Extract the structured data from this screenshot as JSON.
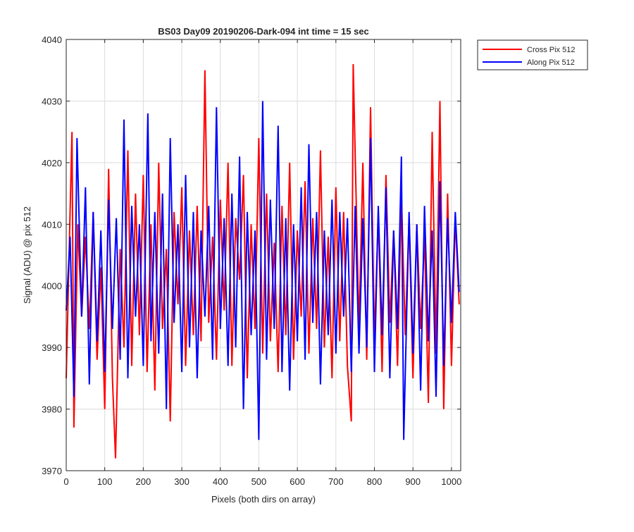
{
  "chart_data": {
    "type": "line",
    "title": "BS03 Day09 20190206-Dark-094 int time = 15 sec",
    "xlabel": "Pixels (both dirs on array)",
    "ylabel": "Signal (ADU) @ pix 512",
    "xlim": [
      0,
      1024
    ],
    "ylim": [
      3970,
      4040
    ],
    "xticks": [
      0,
      100,
      200,
      300,
      400,
      500,
      600,
      700,
      800,
      900,
      1000
    ],
    "yticks": [
      3970,
      3980,
      3990,
      4000,
      4010,
      4020,
      4030,
      4040
    ],
    "grid": true,
    "legend_position": "outside-top-right",
    "series": [
      {
        "name": "Cross Pix 512",
        "color": "#ff0000",
        "x": [
          0,
          10,
          15,
          20,
          30,
          40,
          50,
          60,
          70,
          80,
          90,
          100,
          110,
          120,
          128,
          140,
          150,
          160,
          170,
          180,
          190,
          200,
          210,
          220,
          230,
          240,
          250,
          260,
          270,
          280,
          290,
          300,
          310,
          320,
          330,
          340,
          350,
          360,
          370,
          380,
          390,
          400,
          410,
          420,
          430,
          440,
          450,
          460,
          470,
          480,
          490,
          500,
          510,
          520,
          530,
          540,
          550,
          560,
          570,
          580,
          590,
          600,
          610,
          620,
          630,
          640,
          650,
          660,
          670,
          680,
          690,
          700,
          710,
          720,
          730,
          740,
          745,
          760,
          770,
          780,
          790,
          800,
          810,
          820,
          830,
          840,
          850,
          860,
          870,
          880,
          890,
          900,
          910,
          920,
          930,
          940,
          950,
          960,
          970,
          980,
          990,
          1000,
          1010,
          1020
        ],
        "y": [
          3985,
          4012,
          4025,
          3977,
          4010,
          3995,
          4008,
          3993,
          4012,
          3988,
          4003,
          3980,
          4019,
          3985,
          3972,
          4006,
          3990,
          4022,
          3987,
          4015,
          3992,
          4018,
          3986,
          4010,
          3983,
          4020,
          3993,
          4006,
          3978,
          4012,
          3997,
          4016,
          3987,
          4009,
          3992,
          4013,
          3991,
          4035,
          3994,
          4008,
          3988,
          4014,
          3996,
          4020,
          3987,
          4011,
          4001,
          4018,
          3985,
          4010,
          3993,
          4024,
          3989,
          4015,
          3991,
          4007,
          3986,
          4013,
          3992,
          4020,
          3988,
          4009,
          3995,
          4017,
          3989,
          4011,
          3993,
          4022,
          3990,
          4008,
          3985,
          4016,
          3991,
          4012,
          3987,
          3978,
          4036,
          3993,
          4020,
          3988,
          4029,
          3991,
          4012,
          3986,
          4018,
          3994,
          4009,
          3987,
          4015,
          3992,
          4011,
          3985,
          4010,
          3993,
          4008,
          3981,
          4025,
          3989,
          4030,
          3980,
          4015,
          3987,
          4011,
          3997
        ]
      },
      {
        "name": "Along Pix 512",
        "color": "#0000ff",
        "x": [
          0,
          10,
          20,
          28,
          40,
          50,
          60,
          70,
          80,
          90,
          100,
          110,
          120,
          130,
          140,
          150,
          160,
          170,
          180,
          190,
          200,
          212,
          220,
          230,
          240,
          250,
          260,
          270,
          280,
          290,
          300,
          310,
          320,
          330,
          340,
          350,
          360,
          370,
          380,
          390,
          400,
          410,
          420,
          430,
          440,
          450,
          460,
          470,
          480,
          490,
          500,
          510,
          520,
          530,
          540,
          550,
          560,
          570,
          580,
          590,
          600,
          610,
          620,
          630,
          640,
          650,
          660,
          670,
          680,
          690,
          700,
          710,
          720,
          730,
          740,
          750,
          760,
          770,
          780,
          790,
          800,
          810,
          820,
          830,
          840,
          850,
          860,
          870,
          876,
          890,
          900,
          910,
          920,
          930,
          940,
          950,
          960,
          970,
          980,
          990,
          1000,
          1010,
          1020
        ],
        "y": [
          3996,
          4008,
          3982,
          4024,
          3995,
          4016,
          3984,
          4012,
          3991,
          4009,
          3986,
          4014,
          3993,
          4011,
          3988,
          4027,
          3985,
          4013,
          3995,
          4010,
          3987,
          4028,
          3991,
          4012,
          3989,
          4015,
          3980,
          4024,
          3994,
          4010,
          3986,
          4018,
          3990,
          4012,
          3985,
          4009,
          3995,
          4013,
          3988,
          4029,
          3993,
          4011,
          3987,
          4015,
          3990,
          4021,
          3980,
          4012,
          3992,
          4009,
          3975,
          4030,
          3988,
          4014,
          3993,
          4026,
          3986,
          4011,
          3983,
          4010,
          3991,
          4016,
          3988,
          4023,
          3994,
          4012,
          3984,
          4009,
          3992,
          4014,
          3989,
          4012,
          3995,
          4011,
          3986,
          4013,
          3989,
          4011,
          3990,
          4024,
          3986,
          4013,
          3992,
          4016,
          3985,
          4009,
          3993,
          4021,
          3975,
          4012,
          3989,
          4010,
          3983,
          4013,
          3991,
          4009,
          3982,
          4017,
          3987,
          4011,
          3994,
          4012,
          3999
        ]
      }
    ]
  }
}
